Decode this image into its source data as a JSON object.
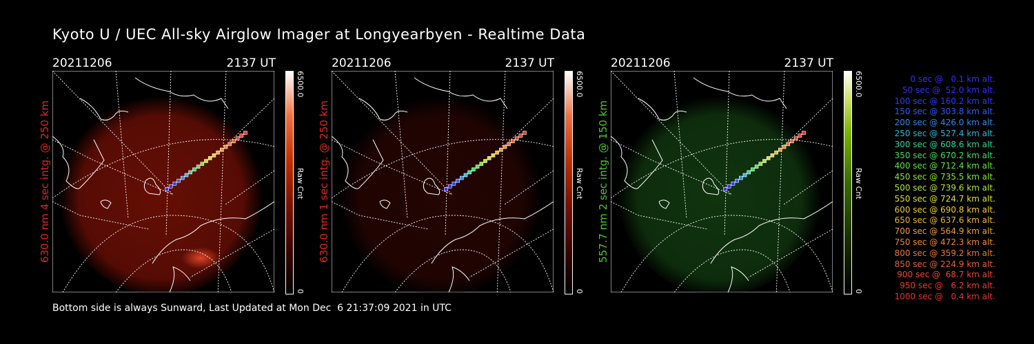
{
  "title": "Kyoto U / UEC All-sky Airglow Imager at Longyearbyen - Realtime Data",
  "footer": "Bottom side is always Sunward, Last Updated at Mon Dec  6 21:37:09 2021 in UTC",
  "panels": [
    {
      "date": "20211206",
      "time": "2137 UT",
      "label": "630.0 nm 4 sec intg. @ 250 km",
      "label_color": "#e02a1a",
      "cbar_max": "6500.0",
      "cbar_min": "0",
      "cbar_unit": "Raw Cnt"
    },
    {
      "date": "20211206",
      "time": "2137 UT",
      "label": "630.0 nm 1 sec intg. @ 250 km",
      "label_color": "#e02a1a",
      "cbar_max": "6500.0",
      "cbar_min": "0",
      "cbar_unit": "Raw Cnt"
    },
    {
      "date": "20211206",
      "time": "2137 UT",
      "label": "557.7 nm 2 sec intg. @ 150 km",
      "label_color": "#4ccc2a",
      "cbar_max": "6500.0",
      "cbar_min": "0",
      "cbar_unit": "Raw Cnt"
    }
  ],
  "legend": [
    {
      "text": "0 sec @   0.1 km alt.",
      "color": "#3a2cff"
    },
    {
      "text": "50 sec @  52.0 km alt.",
      "color": "#3a2cff"
    },
    {
      "text": "100 sec @ 160.2 km alt.",
      "color": "#2c3cff"
    },
    {
      "text": "150 sec @ 303.8 km alt.",
      "color": "#2c5cff"
    },
    {
      "text": "200 sec @ 426.0 km alt.",
      "color": "#2c8cf0"
    },
    {
      "text": "250 sec @ 527.4 km alt.",
      "color": "#2cb8e0"
    },
    {
      "text": "300 sec @ 608.6 km alt.",
      "color": "#2cd8a0"
    },
    {
      "text": "350 sec @ 670.2 km alt.",
      "color": "#40e060"
    },
    {
      "text": "400 sec @ 712.4 km alt.",
      "color": "#5ae838"
    },
    {
      "text": "450 sec @ 735.5 km alt.",
      "color": "#8ae830"
    },
    {
      "text": "500 sec @ 739.6 km alt.",
      "color": "#b8e830"
    },
    {
      "text": "550 sec @ 724.7 km alt.",
      "color": "#e0e030"
    },
    {
      "text": "600 sec @ 690.8 km alt.",
      "color": "#f0d030"
    },
    {
      "text": "650 sec @ 637.6 km alt.",
      "color": "#f0b830"
    },
    {
      "text": "700 sec @ 564.9 km alt.",
      "color": "#f0a030"
    },
    {
      "text": "750 sec @ 472.3 km alt.",
      "color": "#f08c30"
    },
    {
      "text": "800 sec @ 359.2 km alt.",
      "color": "#f07830"
    },
    {
      "text": "850 sec @ 224.9 km alt.",
      "color": "#f06030"
    },
    {
      "text": "900 sec @  68.7 km alt.",
      "color": "#f04830"
    },
    {
      "text": "950 sec @   6.2 km alt.",
      "color": "#f03a30"
    },
    {
      "text": "1000 sec @   0.4 km alt.",
      "color": "#f03030"
    }
  ]
}
